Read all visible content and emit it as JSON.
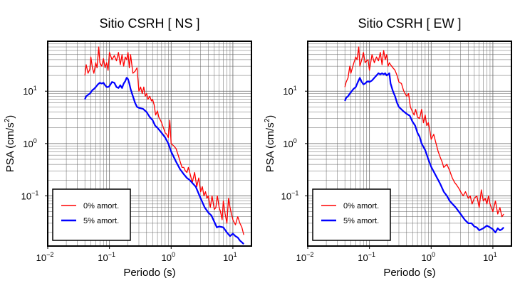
{
  "chart_data": [
    {
      "type": "line",
      "title": "Sitio CSRH [ NS ]",
      "xlabel": "Periodo (s)",
      "ylabel_main": "PSA (cm/s",
      "ylabel_sup": "2",
      "ylabel_tail": ")",
      "x_scale": "log",
      "y_scale": "log",
      "xlim": [
        0.01,
        20
      ],
      "ylim": [
        0.011,
        90
      ],
      "grid": true,
      "legend_position": "bottom-left",
      "x_ticks": [
        {
          "value": 0.01,
          "base": "10",
          "exp": "−2"
        },
        {
          "value": 0.1,
          "base": "10",
          "exp": "−1"
        },
        {
          "value": 1,
          "base": "10",
          "exp": "0"
        },
        {
          "value": 10,
          "base": "10",
          "exp": "1"
        }
      ],
      "y_ticks": [
        {
          "value": 0.1,
          "base": "10",
          "exp": "−1"
        },
        {
          "value": 1,
          "base": "10",
          "exp": "0"
        },
        {
          "value": 10,
          "base": "10",
          "exp": "1"
        }
      ],
      "series": [
        {
          "name": "0% amort.",
          "color": "#ff0000",
          "x": [
            0.04,
            0.042,
            0.045,
            0.048,
            0.05,
            0.053,
            0.056,
            0.06,
            0.063,
            0.067,
            0.07,
            0.075,
            0.08,
            0.085,
            0.09,
            0.095,
            0.1,
            0.11,
            0.12,
            0.13,
            0.14,
            0.15,
            0.16,
            0.17,
            0.18,
            0.19,
            0.2,
            0.21,
            0.22,
            0.24,
            0.26,
            0.28,
            0.3,
            0.32,
            0.34,
            0.36,
            0.38,
            0.4,
            0.42,
            0.45,
            0.48,
            0.5,
            0.53,
            0.56,
            0.6,
            0.63,
            0.67,
            0.7,
            0.75,
            0.8,
            0.85,
            0.9,
            0.95,
            1.0,
            1.1,
            1.2,
            1.3,
            1.4,
            1.5,
            1.6,
            1.7,
            1.8,
            1.9,
            2.0,
            2.2,
            2.4,
            2.6,
            2.8,
            3.0,
            3.2,
            3.4,
            3.6,
            3.8,
            4.0,
            4.3,
            4.6,
            5.0,
            5.3,
            5.6,
            6.0,
            6.3,
            6.7,
            7.0,
            7.5,
            8.0,
            8.5,
            9.0,
            9.5,
            10,
            11,
            12,
            13,
            14,
            15
          ],
          "y": [
            20,
            32,
            22,
            26,
            45,
            28,
            22,
            35,
            28,
            70,
            35,
            30,
            42,
            28,
            35,
            25,
            55,
            40,
            48,
            38,
            55,
            32,
            50,
            30,
            45,
            40,
            55,
            28,
            50,
            22,
            24,
            28,
            10,
            12,
            9,
            12,
            8,
            9,
            7,
            8,
            6.5,
            7,
            5.5,
            3.5,
            4.2,
            3.2,
            2.8,
            2.5,
            2.0,
            1.6,
            1.5,
            1.3,
            2.8,
            1.0,
            0.9,
            0.8,
            0.6,
            0.45,
            0.35,
            0.35,
            0.3,
            0.28,
            0.35,
            0.28,
            0.18,
            0.28,
            0.15,
            0.22,
            0.12,
            0.15,
            0.1,
            0.12,
            0.09,
            0.1,
            0.06,
            0.1,
            0.055,
            0.06,
            0.1,
            0.06,
            0.05,
            0.035,
            0.08,
            0.045,
            0.03,
            0.09,
            0.06,
            0.045,
            0.035,
            0.028,
            0.04,
            0.03,
            0.025,
            0.018
          ]
        },
        {
          "name": "5% amort.",
          "color": "#0000ff",
          "x": [
            0.04,
            0.042,
            0.045,
            0.048,
            0.05,
            0.053,
            0.056,
            0.06,
            0.065,
            0.07,
            0.075,
            0.08,
            0.085,
            0.09,
            0.095,
            0.1,
            0.11,
            0.12,
            0.13,
            0.14,
            0.15,
            0.16,
            0.17,
            0.18,
            0.19,
            0.2,
            0.21,
            0.22,
            0.24,
            0.26,
            0.28,
            0.3,
            0.35,
            0.4,
            0.45,
            0.5,
            0.55,
            0.6,
            0.7,
            0.8,
            0.9,
            1.0,
            1.2,
            1.4,
            1.6,
            1.8,
            2.0,
            2.5,
            3.0,
            3.5,
            4.0,
            4.5,
            5.0,
            5.5,
            6.0,
            7.0,
            8.0,
            9.0,
            10,
            11,
            12,
            13,
            14,
            15
          ],
          "y": [
            7,
            8,
            8.5,
            9,
            9.5,
            10.5,
            11,
            12,
            13.5,
            14.5,
            14,
            14.5,
            13,
            12,
            12,
            12.5,
            15,
            14.5,
            12,
            11.5,
            13,
            11.5,
            14,
            15.5,
            18,
            17,
            14,
            11,
            8,
            6,
            5,
            4.8,
            4.6,
            4.0,
            3.2,
            2.8,
            2.2,
            2.0,
            1.6,
            1.3,
            1.0,
            0.7,
            0.45,
            0.32,
            0.26,
            0.22,
            0.2,
            0.15,
            0.09,
            0.06,
            0.048,
            0.042,
            0.032,
            0.025,
            0.026,
            0.025,
            0.02,
            0.017,
            0.019,
            0.017,
            0.016,
            0.014,
            0.013,
            0.012
          ]
        }
      ]
    },
    {
      "type": "line",
      "title": "Sitio CSRH [ EW ]",
      "xlabel": "Periodo (s)",
      "ylabel_main": "PSA (cm/s",
      "ylabel_sup": "2",
      "ylabel_tail": ")",
      "x_scale": "log",
      "y_scale": "log",
      "xlim": [
        0.01,
        20
      ],
      "ylim": [
        0.011,
        90
      ],
      "grid": true,
      "legend_position": "bottom-left",
      "x_ticks": [
        {
          "value": 0.01,
          "base": "10",
          "exp": "−2"
        },
        {
          "value": 0.1,
          "base": "10",
          "exp": "−1"
        },
        {
          "value": 1,
          "base": "10",
          "exp": "0"
        },
        {
          "value": 10,
          "base": "10",
          "exp": "1"
        }
      ],
      "y_ticks": [
        {
          "value": 0.1,
          "base": "10",
          "exp": "−1"
        },
        {
          "value": 1,
          "base": "10",
          "exp": "0"
        },
        {
          "value": 10,
          "base": "10",
          "exp": "1"
        }
      ],
      "series": [
        {
          "name": "0% amort.",
          "color": "#ff0000",
          "x": [
            0.04,
            0.042,
            0.045,
            0.048,
            0.05,
            0.053,
            0.056,
            0.06,
            0.063,
            0.067,
            0.07,
            0.075,
            0.08,
            0.085,
            0.09,
            0.095,
            0.1,
            0.11,
            0.12,
            0.13,
            0.14,
            0.15,
            0.16,
            0.17,
            0.18,
            0.19,
            0.2,
            0.21,
            0.22,
            0.24,
            0.26,
            0.28,
            0.3,
            0.33,
            0.36,
            0.4,
            0.43,
            0.46,
            0.5,
            0.53,
            0.56,
            0.6,
            0.65,
            0.7,
            0.75,
            0.8,
            0.85,
            0.9,
            0.95,
            1.0,
            1.1,
            1.2,
            1.3,
            1.4,
            1.5,
            1.6,
            1.8,
            2.0,
            2.2,
            2.4,
            2.6,
            2.8,
            3.0,
            3.3,
            3.6,
            4.0,
            4.3,
            4.6,
            5.0,
            5.5,
            6.0,
            6.5,
            7.0,
            7.5,
            8.0,
            8.5,
            9.0,
            10,
            11,
            12,
            13,
            14,
            15
          ],
          "y": [
            12,
            15,
            18,
            30,
            22,
            28,
            35,
            45,
            40,
            70,
            30,
            40,
            55,
            35,
            38,
            40,
            25,
            50,
            35,
            45,
            38,
            55,
            32,
            60,
            40,
            50,
            30,
            35,
            32,
            28,
            25,
            20,
            15,
            14,
            10,
            8,
            9,
            5,
            4,
            3.5,
            4.5,
            3.2,
            3,
            4.5,
            2.5,
            3.5,
            2.2,
            2.5,
            1.8,
            1.2,
            1.5,
            1.0,
            0.7,
            0.55,
            0.45,
            0.35,
            0.4,
            0.3,
            0.22,
            0.18,
            0.16,
            0.14,
            0.12,
            0.1,
            0.12,
            0.09,
            0.1,
            0.07,
            0.09,
            0.1,
            0.06,
            0.13,
            0.08,
            0.09,
            0.07,
            0.1,
            0.07,
            0.05,
            0.08,
            0.045,
            0.06,
            0.04,
            0.045
          ]
        },
        {
          "name": "5% amort.",
          "color": "#0000ff",
          "x": [
            0.04,
            0.042,
            0.045,
            0.048,
            0.05,
            0.055,
            0.06,
            0.065,
            0.07,
            0.075,
            0.08,
            0.085,
            0.09,
            0.095,
            0.1,
            0.11,
            0.12,
            0.13,
            0.14,
            0.15,
            0.16,
            0.17,
            0.18,
            0.19,
            0.2,
            0.21,
            0.22,
            0.24,
            0.26,
            0.28,
            0.3,
            0.35,
            0.4,
            0.45,
            0.5,
            0.55,
            0.6,
            0.65,
            0.7,
            0.8,
            0.9,
            1.0,
            1.2,
            1.4,
            1.6,
            1.8,
            2.0,
            2.5,
            3.0,
            3.5,
            4.0,
            4.5,
            5.0,
            5.5,
            6.0,
            7.0,
            8.0,
            9.0,
            10,
            11,
            12,
            13,
            14,
            15
          ],
          "y": [
            6.5,
            7.5,
            8,
            9,
            9.5,
            11,
            12,
            15,
            18,
            15,
            13.5,
            14,
            15,
            15.5,
            15,
            16,
            18,
            20,
            22,
            21,
            22,
            21,
            22,
            20,
            21,
            22,
            14,
            10,
            8,
            6,
            5,
            4.2,
            3.7,
            3.4,
            2.6,
            2.2,
            1.6,
            1.35,
            1.0,
            0.75,
            0.5,
            0.36,
            0.24,
            0.17,
            0.12,
            0.1,
            0.08,
            0.06,
            0.045,
            0.035,
            0.03,
            0.03,
            0.026,
            0.025,
            0.022,
            0.024,
            0.027,
            0.025,
            0.023,
            0.02,
            0.024,
            0.022,
            0.023,
            0.025
          ]
        }
      ]
    }
  ]
}
